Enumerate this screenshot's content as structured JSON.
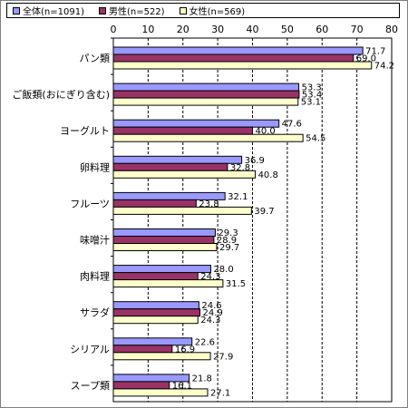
{
  "chart_data": {
    "type": "bar",
    "orientation": "horizontal",
    "categories": [
      "パン類",
      "ご飯類(おにぎり含む)",
      "ヨーグルト",
      "卵料理",
      "フルーツ",
      "味噌汁",
      "肉料理",
      "サラダ",
      "シリアル",
      "スープ類"
    ],
    "series": [
      {
        "name": "全体(n=1091)",
        "color": "#9999ff",
        "values": [
          71.7,
          53.3,
          47.6,
          36.9,
          32.1,
          29.3,
          28.0,
          24.6,
          22.6,
          21.8
        ]
      },
      {
        "name": "男性(n=522)",
        "color": "#993366",
        "values": [
          69.0,
          53.4,
          40.0,
          32.8,
          23.8,
          28.9,
          24.3,
          24.9,
          16.9,
          16.1
        ]
      },
      {
        "name": "女性(n=569)",
        "color": "#ffffcc",
        "values": [
          74.2,
          53.1,
          54.5,
          40.8,
          39.7,
          29.7,
          31.5,
          24.3,
          27.9,
          27.1
        ]
      }
    ],
    "xlim": [
      0,
      80
    ],
    "ticks": [
      0,
      10,
      20,
      30,
      40,
      50,
      60,
      70,
      80
    ],
    "grid": "vertical dashed",
    "legend": "top"
  }
}
